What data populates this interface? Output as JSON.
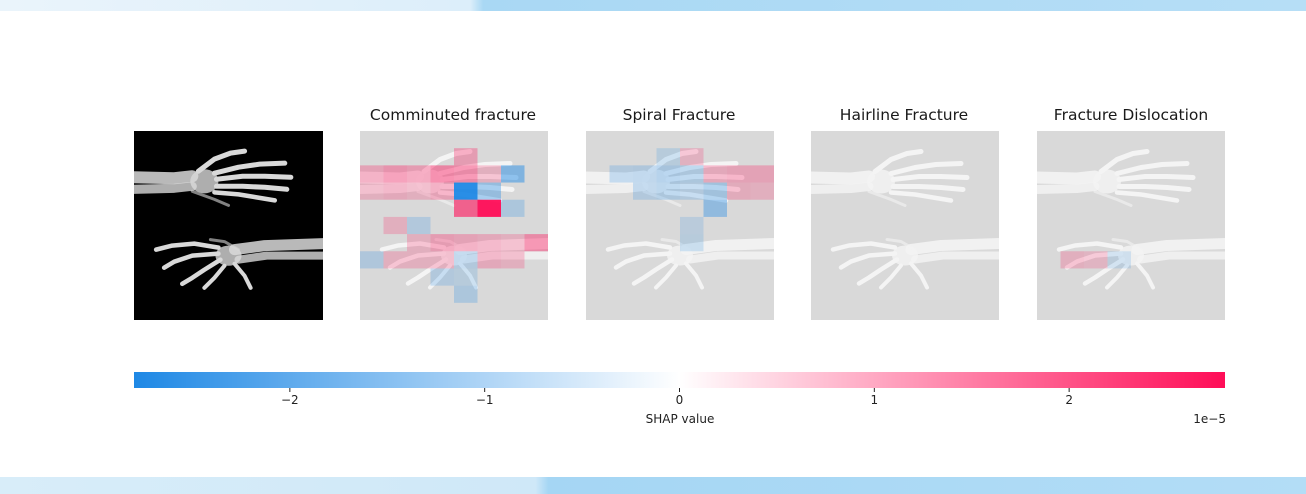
{
  "chart_data": {
    "type": "heatmap",
    "title": "",
    "panels": [
      {
        "label": "",
        "kind": "original"
      },
      {
        "label": "Comminuted fracture",
        "kind": "shap",
        "cells": [
          {
            "r": 1,
            "c": 4,
            "v": 0.6
          },
          {
            "r": 2,
            "c": 4,
            "v": 0.9
          },
          {
            "r": 2,
            "c": 0,
            "v": 0.5
          },
          {
            "r": 2,
            "c": 1,
            "v": 0.75
          },
          {
            "r": 2,
            "c": 2,
            "v": 0.6
          },
          {
            "r": 2,
            "c": 3,
            "v": 1.0
          },
          {
            "r": 2,
            "c": 5,
            "v": 0.3
          },
          {
            "r": 2,
            "c": 6,
            "v": -1.2
          },
          {
            "r": 3,
            "c": 0,
            "v": 0.3
          },
          {
            "r": 3,
            "c": 1,
            "v": 0.4
          },
          {
            "r": 3,
            "c": 2,
            "v": 0.3
          },
          {
            "r": 3,
            "c": 3,
            "v": 0.5
          },
          {
            "r": 3,
            "c": 4,
            "v": -2.8
          },
          {
            "r": 3,
            "c": 5,
            "v": -0.8
          },
          {
            "r": 4,
            "c": 4,
            "v": 1.6
          },
          {
            "r": 4,
            "c": 5,
            "v": 2.8
          },
          {
            "r": 4,
            "c": 6,
            "v": -0.4
          },
          {
            "r": 5,
            "c": 1,
            "v": 0.3
          },
          {
            "r": 5,
            "c": 2,
            "v": -0.3
          },
          {
            "r": 6,
            "c": 2,
            "v": 0.3
          },
          {
            "r": 6,
            "c": 3,
            "v": 0.6
          },
          {
            "r": 6,
            "c": 4,
            "v": 0.5
          },
          {
            "r": 6,
            "c": 5,
            "v": 0.4
          },
          {
            "r": 6,
            "c": 6,
            "v": 0.3
          },
          {
            "r": 6,
            "c": 7,
            "v": 0.9
          },
          {
            "r": 7,
            "c": 0,
            "v": -0.35
          },
          {
            "r": 7,
            "c": 1,
            "v": 0.3
          },
          {
            "r": 7,
            "c": 2,
            "v": 0.3
          },
          {
            "r": 7,
            "c": 3,
            "v": 0.3
          },
          {
            "r": 7,
            "c": 4,
            "v": -0.3
          },
          {
            "r": 7,
            "c": 5,
            "v": 0.4
          },
          {
            "r": 7,
            "c": 6,
            "v": 0.3
          },
          {
            "r": 8,
            "c": 3,
            "v": -0.3
          },
          {
            "r": 8,
            "c": 4,
            "v": -0.2
          },
          {
            "r": 9,
            "c": 4,
            "v": -0.4
          }
        ]
      },
      {
        "label": "Spiral Fracture",
        "kind": "shap",
        "cells": [
          {
            "r": 1,
            "c": 3,
            "v": -0.2
          },
          {
            "r": 1,
            "c": 4,
            "v": 0.25
          },
          {
            "r": 2,
            "c": 1,
            "v": -0.3
          },
          {
            "r": 2,
            "c": 2,
            "v": -0.35
          },
          {
            "r": 2,
            "c": 3,
            "v": -0.5
          },
          {
            "r": 2,
            "c": 4,
            "v": -0.4
          },
          {
            "r": 2,
            "c": 5,
            "v": 0.4
          },
          {
            "r": 2,
            "c": 6,
            "v": 0.5
          },
          {
            "r": 2,
            "c": 7,
            "v": 0.5
          },
          {
            "r": 3,
            "c": 2,
            "v": -0.3
          },
          {
            "r": 3,
            "c": 3,
            "v": -0.4
          },
          {
            "r": 3,
            "c": 4,
            "v": -0.3
          },
          {
            "r": 3,
            "c": 5,
            "v": -0.6
          },
          {
            "r": 3,
            "c": 6,
            "v": 0.35
          },
          {
            "r": 3,
            "c": 7,
            "v": 0.3
          },
          {
            "r": 4,
            "c": 5,
            "v": -0.9
          },
          {
            "r": 5,
            "c": 4,
            "v": -0.15
          },
          {
            "r": 6,
            "c": 4,
            "v": -0.2
          }
        ]
      },
      {
        "label": "Hairline Fracture",
        "kind": "shap",
        "cells": []
      },
      {
        "label": "Fracture Dislocation",
        "kind": "shap",
        "cells": [
          {
            "r": 7,
            "c": 1,
            "v": 0.3
          },
          {
            "r": 7,
            "c": 2,
            "v": 0.2
          },
          {
            "r": 7,
            "c": 3,
            "v": -0.1
          }
        ]
      }
    ],
    "grid": {
      "rows": 11,
      "cols": 8
    },
    "colorbar": {
      "label": "SHAP value",
      "range": [
        -2.8,
        2.8
      ],
      "ticks": [
        -2,
        -1,
        0,
        1,
        2
      ],
      "tick_labels": [
        "−2",
        "−1",
        "0",
        "1",
        "2"
      ],
      "exponent_label": "1e−5",
      "color_negative": "#1e88e5",
      "color_zero": "#ffffff",
      "color_positive": "#ff0d57"
    }
  }
}
